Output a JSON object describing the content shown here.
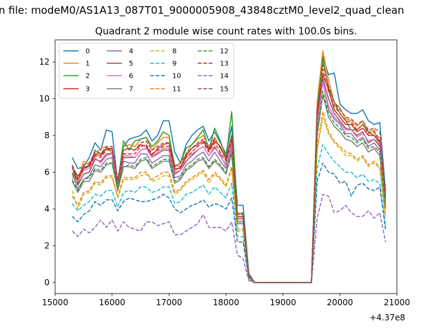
{
  "figure": {
    "suptitle": "n file: modeM0/AS1A13_087T01_9000005908_43848cztM0_level2_quad_clean",
    "title": "Quadrant 2 module wise count rates with 100.0s bins.",
    "x_offset_label": "+4.37e8"
  },
  "chart_data": {
    "type": "line",
    "title": "Quadrant 2 module wise count rates with 100.0s bins.",
    "xlabel": "",
    "ylabel": "",
    "x_offset": 437000000,
    "xlim": [
      15000,
      21000
    ],
    "ylim": [
      -0.6,
      13.2
    ],
    "xticks": [
      15000,
      16000,
      17000,
      18000,
      19000,
      20000,
      21000
    ],
    "yticks": [
      0,
      2,
      4,
      6,
      8,
      10,
      12
    ],
    "grid": false,
    "legend_position": "top-left",
    "legend_columns": 4,
    "x": [
      15300,
      15400,
      15500,
      15600,
      15700,
      15800,
      15900,
      16000,
      16100,
      16200,
      16300,
      16400,
      16500,
      16600,
      16700,
      16800,
      16900,
      17000,
      17100,
      17200,
      17300,
      17400,
      17500,
      17600,
      17700,
      17800,
      17900,
      18000,
      18100,
      18200,
      18300,
      18400,
      18500,
      18600,
      18700,
      18800,
      18900,
      19000,
      19100,
      19200,
      19300,
      19400,
      19500,
      19600,
      19700,
      19800,
      19900,
      20000,
      20100,
      20200,
      20300,
      20400,
      20500,
      20600,
      20700,
      20800
    ],
    "series": [
      {
        "name": "0",
        "color": "#1f77b4",
        "dash": "solid",
        "values": [
          6.8,
          6.2,
          6.3,
          6.8,
          7.6,
          7.2,
          8.3,
          8.2,
          5.4,
          7.4,
          7.8,
          7.9,
          8.0,
          8.3,
          7.7,
          8.0,
          8.8,
          8.8,
          7.1,
          6.5,
          7.5,
          8.0,
          8.3,
          8.5,
          7.7,
          8.2,
          7.6,
          7.0,
          8.5,
          4.2,
          4.2,
          0.5,
          0,
          0,
          0,
          0,
          0,
          0,
          0,
          0,
          0,
          0,
          0,
          9.5,
          12.3,
          11.3,
          11.4,
          9.7,
          9.4,
          9.2,
          9.2,
          9.4,
          8.8,
          8.6,
          8.7,
          5.0
        ]
      },
      {
        "name": "1",
        "color": "#ff7f0e",
        "dash": "solid",
        "values": [
          6.3,
          5.5,
          6.6,
          6.4,
          6.9,
          7.3,
          7.4,
          7.0,
          5.6,
          7.4,
          7.5,
          7.4,
          7.8,
          7.9,
          7.2,
          7.6,
          7.9,
          7.9,
          6.4,
          6.3,
          7.0,
          7.5,
          7.8,
          8.0,
          7.4,
          7.9,
          7.3,
          6.8,
          7.9,
          3.8,
          3.7,
          0.4,
          0,
          0,
          0,
          0,
          0,
          0,
          0,
          0,
          0,
          0,
          0,
          9.8,
          12.6,
          11.0,
          9.8,
          9.5,
          8.9,
          8.8,
          8.5,
          8.8,
          8.2,
          8.3,
          7.4,
          4.5
        ]
      },
      {
        "name": "2",
        "color": "#2ca02c",
        "dash": "solid",
        "values": [
          6.0,
          5.4,
          6.3,
          6.3,
          7.2,
          7.0,
          7.3,
          7.2,
          5.4,
          7.7,
          7.2,
          7.7,
          7.8,
          7.9,
          7.4,
          7.7,
          8.2,
          8.0,
          6.3,
          6.5,
          7.3,
          7.5,
          7.9,
          8.3,
          7.2,
          8.4,
          7.7,
          6.8,
          9.3,
          3.7,
          3.8,
          0.4,
          0,
          0,
          0,
          0,
          0,
          0,
          0,
          0,
          0,
          0,
          0,
          9.4,
          12.2,
          10.6,
          9.8,
          9.2,
          8.8,
          8.3,
          8.3,
          8.6,
          8.2,
          8.0,
          7.6,
          4.4
        ]
      },
      {
        "name": "3",
        "color": "#d62728",
        "dash": "solid",
        "values": [
          6.2,
          5.8,
          6.2,
          6.4,
          7.0,
          6.9,
          7.3,
          7.3,
          5.5,
          7.2,
          7.3,
          7.2,
          7.5,
          7.4,
          6.9,
          7.3,
          7.5,
          7.6,
          6.2,
          6.2,
          6.9,
          7.3,
          7.5,
          7.7,
          7.2,
          7.7,
          7.4,
          6.7,
          8.0,
          3.6,
          3.6,
          0.4,
          0,
          0,
          0,
          0,
          0,
          0,
          0,
          0,
          0,
          0,
          0,
          9.1,
          11.3,
          10.5,
          9.4,
          9.0,
          8.6,
          8.6,
          8.2,
          8.4,
          8.0,
          8.0,
          7.7,
          4.5
        ]
      },
      {
        "name": "4",
        "color": "#9467bd",
        "dash": "solid",
        "values": [
          5.9,
          5.1,
          5.6,
          5.8,
          6.4,
          6.3,
          6.7,
          6.8,
          5.1,
          6.6,
          6.5,
          6.5,
          7.0,
          7.0,
          6.5,
          6.7,
          6.9,
          6.9,
          5.7,
          5.8,
          6.4,
          6.6,
          6.9,
          7.1,
          6.6,
          7.1,
          6.6,
          6.2,
          7.3,
          3.3,
          3.3,
          0.35,
          0,
          0,
          0,
          0,
          0,
          0,
          0,
          0,
          0,
          0,
          0,
          8.4,
          10.9,
          9.4,
          8.9,
          8.6,
          8.1,
          8.1,
          7.7,
          7.9,
          7.4,
          7.6,
          7.2,
          4.2
        ]
      },
      {
        "name": "5",
        "color": "#8c564b",
        "dash": "solid",
        "values": [
          6.3,
          5.3,
          5.9,
          6.0,
          6.7,
          6.6,
          7.0,
          7.0,
          5.1,
          6.8,
          6.8,
          6.8,
          7.2,
          7.3,
          6.8,
          7.0,
          7.2,
          7.2,
          5.9,
          6.1,
          6.6,
          6.9,
          7.2,
          7.4,
          6.9,
          7.4,
          6.9,
          6.4,
          7.6,
          3.5,
          3.5,
          0.35,
          0,
          0,
          0,
          0,
          0,
          0,
          0,
          0,
          0,
          0,
          0,
          8.7,
          11.1,
          10.0,
          9.2,
          8.8,
          8.4,
          8.3,
          8.0,
          8.2,
          7.6,
          7.8,
          7.4,
          4.4
        ]
      },
      {
        "name": "6",
        "color": "#e377c2",
        "dash": "solid",
        "values": [
          5.7,
          5.5,
          6.1,
          6.2,
          6.8,
          6.5,
          6.9,
          7.0,
          5.5,
          6.9,
          6.9,
          6.8,
          7.2,
          7.3,
          6.8,
          7.1,
          7.3,
          7.3,
          6.0,
          6.1,
          6.8,
          7.0,
          7.2,
          7.4,
          6.9,
          7.3,
          7.0,
          6.3,
          7.5,
          3.4,
          3.4,
          0.35,
          0,
          0,
          0,
          0,
          0,
          0,
          0,
          0,
          0,
          0,
          0,
          8.6,
          10.9,
          9.6,
          9.0,
          8.7,
          8.3,
          8.3,
          7.9,
          8.1,
          7.7,
          7.8,
          7.6,
          4.3
        ]
      },
      {
        "name": "7",
        "color": "#7f7f7f",
        "dash": "solid",
        "values": [
          5.5,
          4.9,
          5.5,
          5.5,
          6.1,
          6.0,
          6.4,
          6.5,
          5.0,
          6.3,
          6.3,
          6.2,
          6.6,
          6.7,
          6.2,
          6.4,
          6.6,
          6.6,
          5.4,
          5.6,
          6.1,
          6.3,
          6.6,
          6.7,
          6.2,
          6.6,
          6.3,
          5.9,
          7.0,
          3.2,
          3.2,
          0.3,
          0,
          0,
          0,
          0,
          0,
          0,
          0,
          0,
          0,
          0,
          0,
          8.0,
          10.2,
          9.0,
          8.5,
          8.2,
          7.8,
          7.7,
          7.4,
          7.6,
          7.1,
          7.3,
          6.9,
          4.0
        ]
      },
      {
        "name": "8",
        "color": "#bcbd22",
        "dash": "dashed",
        "values": [
          5.0,
          4.0,
          4.8,
          4.9,
          5.4,
          5.3,
          5.7,
          5.7,
          4.6,
          5.6,
          5.6,
          5.6,
          5.8,
          5.9,
          5.5,
          5.6,
          5.8,
          5.8,
          4.8,
          5.0,
          5.4,
          5.6,
          5.8,
          6.0,
          5.4,
          5.9,
          5.6,
          5.2,
          6.2,
          2.8,
          2.8,
          0.3,
          0,
          0,
          0,
          0,
          0,
          0,
          0,
          0,
          0,
          0,
          0,
          7.2,
          9.0,
          8.1,
          7.6,
          7.3,
          6.9,
          6.9,
          6.6,
          6.8,
          6.3,
          6.5,
          6.2,
          3.6
        ]
      },
      {
        "name": "9",
        "color": "#17becf",
        "dash": "dashed",
        "values": [
          4.3,
          3.9,
          4.2,
          4.4,
          4.8,
          4.7,
          5.0,
          5.0,
          4.1,
          4.9,
          5.0,
          4.9,
          5.2,
          5.2,
          4.9,
          5.0,
          5.2,
          5.2,
          4.3,
          4.4,
          4.8,
          4.9,
          5.1,
          5.3,
          4.8,
          5.2,
          4.9,
          4.6,
          5.4,
          2.5,
          2.5,
          0.25,
          0,
          0,
          0,
          0,
          0,
          0,
          0,
          0,
          0,
          0,
          0,
          6.2,
          7.5,
          7.0,
          6.6,
          6.3,
          6.0,
          6.0,
          5.7,
          5.9,
          5.5,
          5.6,
          5.4,
          3.1
        ]
      },
      {
        "name": "10",
        "color": "#1f77b4",
        "dash": "dashed",
        "values": [
          3.6,
          3.3,
          3.7,
          3.9,
          4.4,
          4.2,
          4.5,
          4.5,
          3.9,
          4.4,
          4.6,
          4.5,
          4.4,
          4.4,
          4.5,
          4.6,
          4.8,
          4.6,
          4.0,
          3.8,
          4.0,
          4.2,
          4.3,
          4.5,
          4.1,
          4.3,
          4.2,
          4.0,
          4.6,
          2.2,
          2.2,
          0.2,
          0,
          0,
          0,
          0,
          0,
          0,
          0,
          0,
          0,
          0,
          0,
          5.5,
          6.5,
          6.0,
          5.9,
          5.4,
          5.5,
          4.7,
          5.3,
          5.4,
          5.1,
          5.0,
          5.2,
          2.9
        ]
      },
      {
        "name": "11",
        "color": "#ff7f0e",
        "dash": "dashed",
        "values": [
          4.7,
          4.2,
          4.9,
          5.0,
          5.5,
          5.4,
          5.8,
          5.8,
          4.7,
          5.7,
          5.7,
          5.7,
          6.0,
          6.0,
          5.6,
          5.8,
          6.0,
          6.0,
          4.9,
          5.1,
          5.5,
          5.7,
          5.9,
          6.1,
          5.6,
          6.0,
          5.7,
          5.3,
          6.3,
          2.9,
          2.9,
          0.3,
          0,
          0,
          0,
          0,
          0,
          0,
          0,
          0,
          0,
          0,
          0,
          7.3,
          9.3,
          8.2,
          7.7,
          7.4,
          7.1,
          7.0,
          6.7,
          6.9,
          6.4,
          6.6,
          6.3,
          3.6
        ]
      },
      {
        "name": "12",
        "color": "#2ca02c",
        "dash": "dashed",
        "values": [
          5.6,
          5.0,
          5.6,
          5.7,
          6.2,
          6.1,
          6.5,
          6.5,
          5.1,
          6.3,
          6.4,
          6.3,
          6.7,
          6.8,
          6.3,
          6.5,
          6.7,
          6.7,
          5.5,
          5.7,
          6.2,
          6.4,
          6.7,
          6.8,
          6.3,
          6.7,
          6.4,
          6.0,
          7.1,
          3.3,
          3.3,
          0.3,
          0,
          0,
          0,
          0,
          0,
          0,
          0,
          0,
          0,
          0,
          0,
          8.1,
          10.4,
          9.2,
          8.7,
          8.4,
          8.0,
          7.9,
          7.6,
          7.8,
          7.3,
          7.4,
          7.1,
          4.1
        ]
      },
      {
        "name": "13",
        "color": "#d62728",
        "dash": "dashed",
        "values": [
          6.3,
          5.6,
          6.2,
          6.3,
          6.9,
          6.8,
          7.2,
          7.2,
          5.5,
          7.0,
          7.0,
          7.0,
          7.4,
          7.5,
          7.0,
          7.2,
          7.4,
          7.4,
          6.1,
          6.3,
          6.8,
          7.1,
          7.4,
          7.6,
          7.1,
          7.6,
          7.1,
          6.6,
          7.8,
          3.6,
          3.6,
          0.4,
          0,
          0,
          0,
          0,
          0,
          0,
          0,
          0,
          0,
          0,
          0,
          9.0,
          11.6,
          10.4,
          9.6,
          9.2,
          8.8,
          8.7,
          8.3,
          8.6,
          8.1,
          8.2,
          7.8,
          4.6
        ]
      },
      {
        "name": "14",
        "color": "#9467bd",
        "dash": "dashed",
        "values": [
          2.8,
          2.5,
          2.9,
          2.7,
          3.0,
          3.4,
          3.0,
          3.4,
          2.8,
          3.3,
          3.0,
          2.9,
          2.8,
          3.3,
          3.3,
          3.1,
          3.2,
          3.3,
          2.6,
          2.6,
          2.8,
          3.0,
          3.2,
          3.7,
          3.0,
          3.0,
          3.0,
          2.8,
          3.3,
          1.5,
          1.3,
          0.1,
          0,
          0,
          0,
          0,
          0,
          0,
          0,
          0,
          0,
          0,
          0,
          3.5,
          4.8,
          4.7,
          3.8,
          3.9,
          4.2,
          3.8,
          3.6,
          3.6,
          3.9,
          3.5,
          3.8,
          2.2
        ]
      },
      {
        "name": "15",
        "color": "#8c564b",
        "dash": "dashed",
        "values": [
          6.4,
          5.7,
          6.4,
          6.5,
          7.1,
          7.0,
          7.4,
          7.4,
          5.6,
          7.2,
          7.3,
          7.2,
          7.6,
          7.7,
          7.2,
          7.4,
          7.6,
          7.6,
          6.3,
          6.5,
          7.0,
          7.3,
          7.6,
          7.8,
          7.3,
          7.8,
          7.3,
          6.8,
          8.0,
          3.7,
          3.7,
          0.4,
          0,
          0,
          0,
          0,
          0,
          0,
          0,
          0,
          0,
          0,
          0,
          9.3,
          11.9,
          10.7,
          9.8,
          9.4,
          9.0,
          8.9,
          8.6,
          8.8,
          8.3,
          8.4,
          8.2,
          4.8
        ]
      }
    ]
  }
}
